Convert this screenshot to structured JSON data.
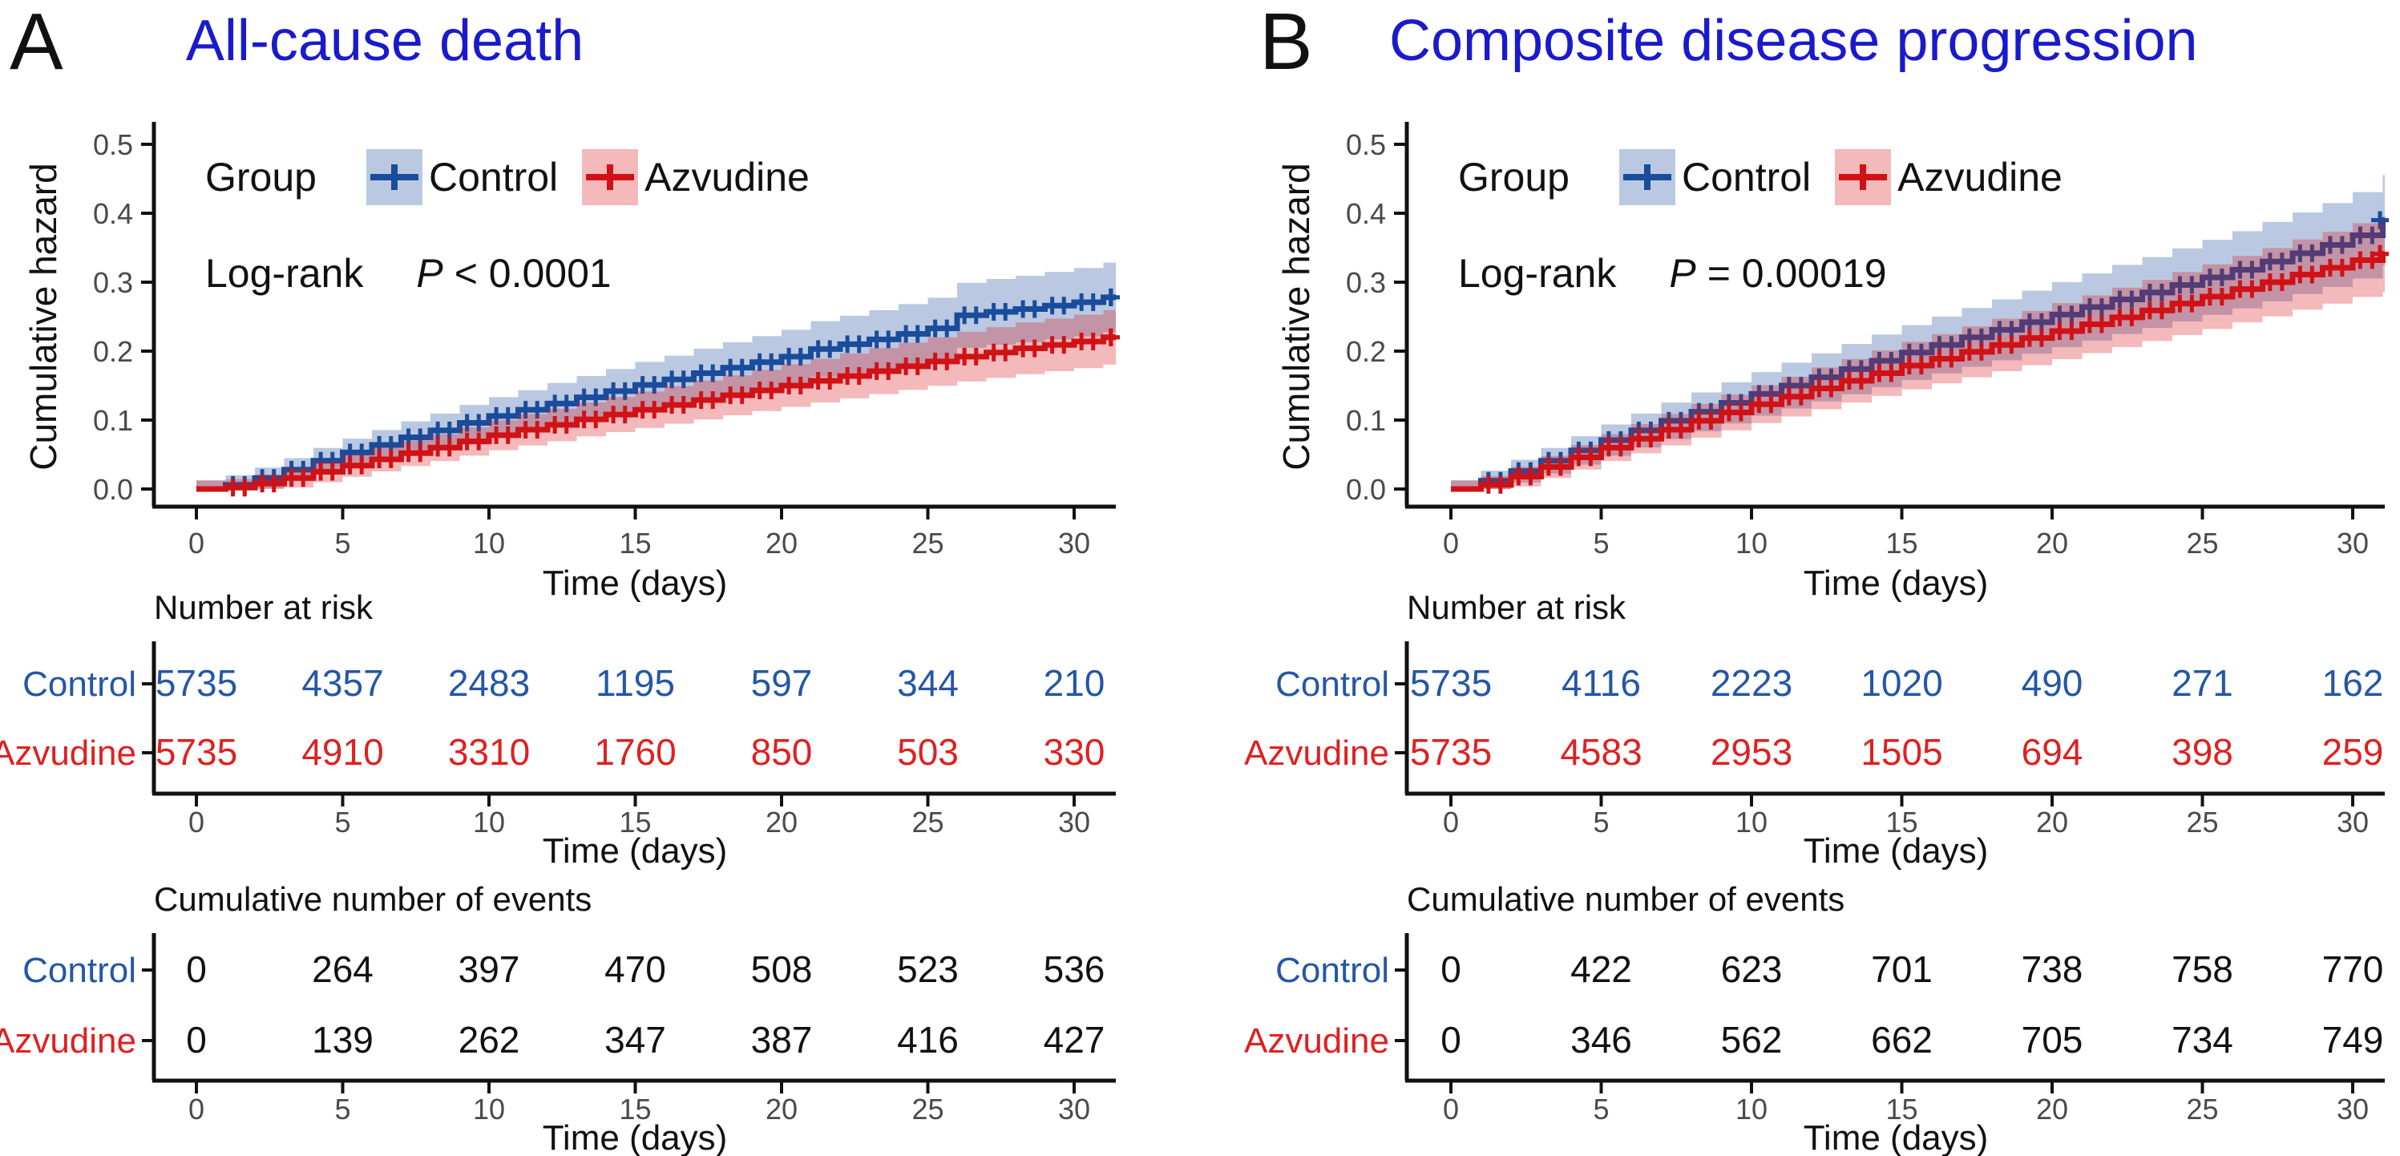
{
  "figure": {
    "colors": {
      "control": "#1a4c9c",
      "azvudine": "#d01217",
      "control_fill": "rgba(26,76,156,0.30)",
      "azvudine_fill": "rgba(214,24,30,0.30)",
      "control_text": "#2457a5",
      "azvudine_text": "#de2121",
      "title_blue": "#1a1acc",
      "tick_gray": "#4a4a4a",
      "black": "#111111"
    }
  },
  "panels": [
    {
      "letter": "A",
      "title": "All-cause death",
      "legend": {
        "title": "Group",
        "items": [
          {
            "key": "control",
            "label": "Control"
          },
          {
            "key": "azvudine",
            "label": "Azvudine"
          }
        ]
      },
      "logrank": {
        "label": "Log-rank",
        "p": "P",
        "rest": "< 0.0001"
      }
    },
    {
      "letter": "B",
      "title": "Composite disease progression",
      "legend": {
        "title": "Group",
        "items": [
          {
            "key": "control",
            "label": "Control"
          },
          {
            "key": "azvudine",
            "label": "Azvudine"
          }
        ]
      },
      "logrank": {
        "label": "Log-rank",
        "p": "P",
        "rest": "= 0.00019"
      }
    }
  ],
  "chart_data": [
    {
      "type": "line",
      "subtype": "step-cumulative-hazard",
      "title": "All-cause death",
      "xlabel": "Time (days)",
      "ylabel": "Cumulative hazard",
      "xlim": [
        0,
        31.5
      ],
      "ylim": [
        0,
        0.52
      ],
      "xticks": [
        0,
        5,
        10,
        15,
        20,
        25,
        30
      ],
      "yticks": [
        0,
        0.1,
        0.2,
        0.3,
        0.4,
        0.5
      ],
      "grid": false,
      "legend_position": "inside top-left",
      "logrank_text": "Log-rank P < 0.0001",
      "days": [
        0,
        1,
        2,
        3,
        4,
        5,
        6,
        7,
        8,
        9,
        10,
        11,
        12,
        13,
        14,
        15,
        16,
        17,
        18,
        19,
        20,
        21,
        22,
        23,
        24,
        25,
        26,
        27,
        28,
        29,
        30,
        31
      ],
      "series": [
        {
          "name": "Control",
          "key": "control",
          "values": [
            0,
            0.006,
            0.016,
            0.028,
            0.041,
            0.053,
            0.064,
            0.075,
            0.085,
            0.096,
            0.106,
            0.115,
            0.124,
            0.133,
            0.142,
            0.151,
            0.159,
            0.168,
            0.176,
            0.184,
            0.192,
            0.203,
            0.21,
            0.217,
            0.225,
            0.233,
            0.252,
            0.257,
            0.261,
            0.266,
            0.271,
            0.278
          ]
        },
        {
          "name": "Azvudine",
          "key": "azvudine",
          "values": [
            0,
            0.002,
            0.008,
            0.016,
            0.025,
            0.034,
            0.043,
            0.052,
            0.06,
            0.069,
            0.078,
            0.086,
            0.093,
            0.101,
            0.108,
            0.115,
            0.122,
            0.129,
            0.136,
            0.143,
            0.15,
            0.157,
            0.164,
            0.171,
            0.178,
            0.185,
            0.192,
            0.198,
            0.204,
            0.209,
            0.214,
            0.22
          ]
        }
      ],
      "number_at_risk": {
        "title": "Number at risk",
        "xlabel": "Time (days)",
        "times": [
          0,
          5,
          10,
          15,
          20,
          25,
          30
        ],
        "rows": [
          {
            "label": "Control",
            "key": "control",
            "values": [
              5735,
              4357,
              2483,
              1195,
              597,
              344,
              210
            ]
          },
          {
            "label": "Azvudine",
            "key": "azvudine",
            "values": [
              5735,
              4910,
              3310,
              1760,
              850,
              503,
              330
            ]
          }
        ]
      },
      "cumulative_events": {
        "title": "Cumulative number of events",
        "xlabel": "Time (days)",
        "times": [
          0,
          5,
          10,
          15,
          20,
          25,
          30
        ],
        "rows": [
          {
            "label": "Control",
            "key": "control",
            "values": [
              0,
              264,
              397,
              470,
              508,
              523,
              536
            ]
          },
          {
            "label": "Azvudine",
            "key": "azvudine",
            "values": [
              0,
              139,
              262,
              347,
              387,
              416,
              427
            ]
          }
        ]
      }
    },
    {
      "type": "line",
      "subtype": "step-cumulative-hazard",
      "title": "Composite disease progression",
      "xlabel": "Time (days)",
      "ylabel": "Cumulative hazard",
      "xlim": [
        0,
        31.5
      ],
      "ylim": [
        0,
        0.52
      ],
      "xticks": [
        0,
        5,
        10,
        15,
        20,
        25,
        30
      ],
      "yticks": [
        0,
        0.1,
        0.2,
        0.3,
        0.4,
        0.5
      ],
      "grid": false,
      "legend_position": "inside top-left",
      "logrank_text": "Log-rank P = 0.00019",
      "days": [
        0,
        1,
        2,
        3,
        4,
        5,
        6,
        7,
        8,
        9,
        10,
        11,
        12,
        13,
        14,
        15,
        16,
        17,
        18,
        19,
        20,
        21,
        22,
        23,
        24,
        25,
        26,
        27,
        28,
        29,
        30,
        31
      ],
      "series": [
        {
          "name": "Control",
          "key": "control",
          "values": [
            0,
            0.012,
            0.026,
            0.041,
            0.056,
            0.071,
            0.085,
            0.099,
            0.112,
            0.125,
            0.138,
            0.15,
            0.162,
            0.174,
            0.186,
            0.198,
            0.209,
            0.22,
            0.231,
            0.242,
            0.253,
            0.264,
            0.275,
            0.285,
            0.296,
            0.307,
            0.318,
            0.33,
            0.342,
            0.354,
            0.368,
            0.39
          ]
        },
        {
          "name": "Azvudine",
          "key": "azvudine",
          "values": [
            0,
            0.006,
            0.018,
            0.032,
            0.046,
            0.06,
            0.073,
            0.086,
            0.099,
            0.111,
            0.123,
            0.134,
            0.146,
            0.157,
            0.168,
            0.179,
            0.189,
            0.199,
            0.209,
            0.219,
            0.229,
            0.239,
            0.249,
            0.259,
            0.269,
            0.279,
            0.29,
            0.3,
            0.311,
            0.321,
            0.332,
            0.341
          ]
        }
      ],
      "number_at_risk": {
        "title": "Number at risk",
        "xlabel": "Time (days)",
        "times": [
          0,
          5,
          10,
          15,
          20,
          25,
          30
        ],
        "rows": [
          {
            "label": "Control",
            "key": "control",
            "values": [
              5735,
              4116,
              2223,
              1020,
              490,
              271,
              162
            ]
          },
          {
            "label": "Azvudine",
            "key": "azvudine",
            "values": [
              5735,
              4583,
              2953,
              1505,
              694,
              398,
              259
            ]
          }
        ]
      },
      "cumulative_events": {
        "title": "Cumulative number of events",
        "xlabel": "Time (days)",
        "times": [
          0,
          5,
          10,
          15,
          20,
          25,
          30
        ],
        "rows": [
          {
            "label": "Control",
            "key": "control",
            "values": [
              0,
              422,
              623,
              701,
              738,
              758,
              770
            ]
          },
          {
            "label": "Azvudine",
            "key": "azvudine",
            "values": [
              0,
              346,
              562,
              662,
              705,
              734,
              749
            ]
          }
        ]
      }
    }
  ]
}
